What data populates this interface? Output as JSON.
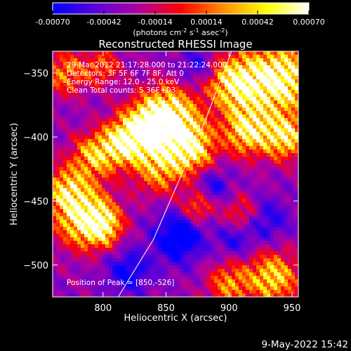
{
  "chart_data": {
    "type": "heatmap",
    "title": "Reconstructed RHESSI Image",
    "xlabel": "Heliocentric X (arcsec)",
    "ylabel": "Heliocentric Y (arcsec)",
    "xlim": [
      760,
      955
    ],
    "ylim": [
      -525,
      -333
    ],
    "x_ticks": [
      800,
      850,
      900,
      950
    ],
    "y_ticks": [
      -350,
      -400,
      -450,
      -500
    ],
    "colorbar": {
      "min": -0.0007,
      "max": 0.0007,
      "tick_values": [
        -0.0007,
        -0.00042,
        -0.00014,
        0.00014,
        0.00042,
        0.0007
      ],
      "tick_labels": [
        "-0.00070",
        "-0.00042",
        "-0.00014",
        "0.00014",
        "0.00042",
        "0.00070"
      ],
      "unit_parts": [
        "(photons cm",
        "-2",
        " s",
        "-1",
        " asec",
        "-2",
        ")"
      ],
      "colors": [
        "#0000ff",
        "#5a00d8",
        "#b000a0",
        "#ff0000",
        "#ff9000",
        "#ffff00",
        "#ffffff"
      ]
    },
    "annotations": [
      "29-Mar-2012 21:17:28.000 to 21:22:24.000",
      "Detectors: 3F 5F 6F 7F 8F, Att 0",
      "Energy Range: 12.0 - 25.0 keV",
      "Clean     Total counts: 5.36E+03"
    ],
    "peak_label": "Position of Peak = [850,-526]",
    "limb_curve": [
      [
        812,
        -525
      ],
      [
        840,
        -480
      ],
      [
        862,
        -430
      ],
      [
        882,
        -385
      ],
      [
        902,
        -333
      ]
    ],
    "hotspots": [
      [
        940,
        -355,
        1.0,
        18
      ],
      [
        905,
        -358,
        0.85,
        15
      ],
      [
        915,
        -395,
        0.8,
        13
      ],
      [
        945,
        -400,
        0.75,
        12
      ],
      [
        852,
        -385,
        0.95,
        16
      ],
      [
        835,
        -395,
        0.85,
        14
      ],
      [
        815,
        -405,
        0.75,
        12
      ],
      [
        870,
        -408,
        0.8,
        13
      ],
      [
        792,
        -415,
        0.6,
        12
      ],
      [
        845,
        -425,
        0.55,
        14
      ],
      [
        785,
        -462,
        0.9,
        16
      ],
      [
        770,
        -440,
        0.55,
        12
      ],
      [
        800,
        -470,
        0.6,
        10
      ],
      [
        935,
        -510,
        0.7,
        14
      ],
      [
        900,
        -515,
        0.5,
        12
      ],
      [
        875,
        -455,
        0.45,
        9
      ],
      [
        910,
        -460,
        0.35,
        10
      ],
      [
        770,
        -350,
        0.5,
        12
      ],
      [
        800,
        -345,
        0.4,
        10
      ]
    ],
    "coldspots": [
      [
        860,
        -478,
        0.75,
        14
      ],
      [
        820,
        -505,
        0.55,
        12
      ],
      [
        888,
        -438,
        0.45,
        9
      ],
      [
        875,
        -345,
        0.45,
        10
      ],
      [
        930,
        -465,
        0.45,
        12
      ],
      [
        905,
        -480,
        0.4,
        10
      ]
    ]
  },
  "footer": {
    "timestamp": "9-May-2022 15:42"
  }
}
